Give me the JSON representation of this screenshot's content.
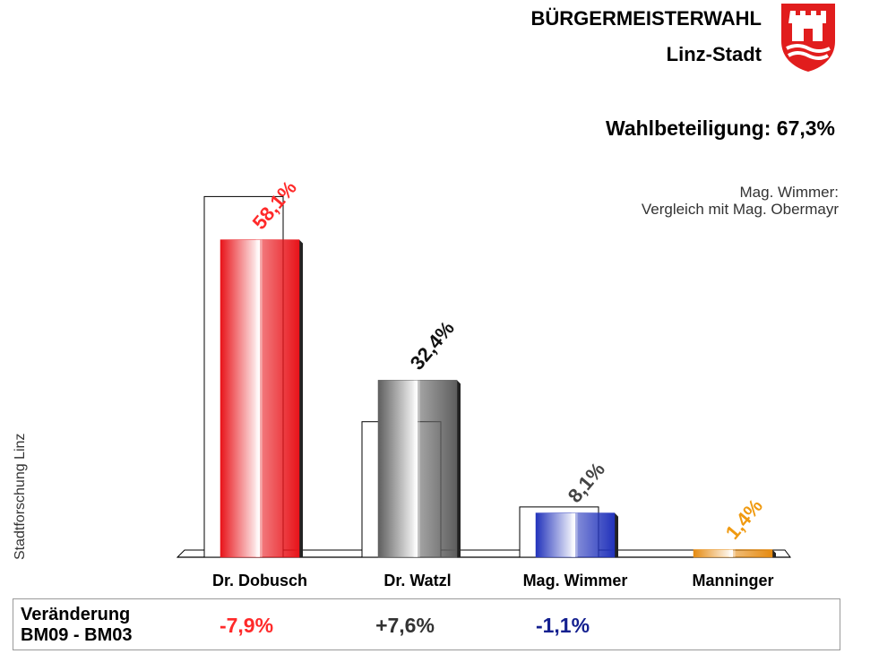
{
  "header": {
    "title": "BÜRGERMEISTERWAHL",
    "subtitle": "Linz-Stadt",
    "turnout": "Wahlbeteiligung: 67,3%",
    "side_label": "Stadtforschung Linz"
  },
  "note": {
    "line1": "Mag. Wimmer:",
    "line2": "Vergleich mit Mag. Obermayr"
  },
  "chart_data": {
    "type": "bar",
    "categories": [
      "Dr. Dobusch",
      "Dr. Watzl",
      "Mag. Wimmer",
      "Manninger"
    ],
    "series": [
      {
        "name": "",
        "values": [
          58.1,
          32.4,
          8.1,
          1.4
        ]
      },
      {
        "name": "",
        "values": [
          66.0,
          24.8,
          9.2,
          null
        ]
      }
    ],
    "labels": [
      "58,1%",
      "32,4%",
      "8,1%",
      "1,4%"
    ],
    "colors": [
      "#e8141a",
      "#5e5e5e",
      "#2233bb",
      "#e58a10"
    ],
    "label_colors": [
      "#ff2a2a",
      "#111111",
      "#444444",
      "#f09a10"
    ],
    "ylim": [
      0,
      70
    ],
    "grid": false,
    "title": "BÜRGERMEISTERWAHL"
  },
  "change": {
    "label_line1": "Veränderung",
    "label_line2": "BM09 - BM03",
    "values": [
      "-7,9%",
      "+7,6%",
      "-1,1%"
    ],
    "colors": [
      "#ff2a2a",
      "#333333",
      "#14208f"
    ]
  }
}
